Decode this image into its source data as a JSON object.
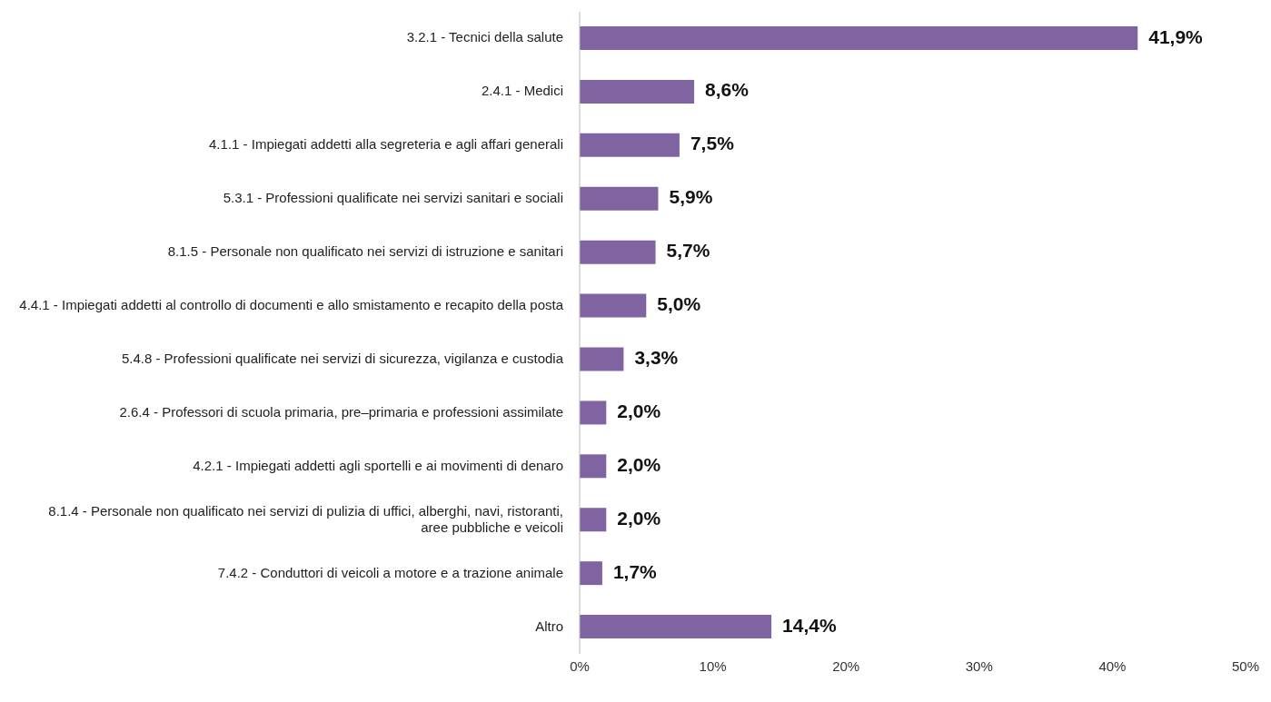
{
  "chart_data": {
    "type": "bar",
    "orientation": "horizontal",
    "categories": [
      "3.2.1 - Tecnici della salute",
      "2.4.1 - Medici",
      "4.1.1 - Impiegati addetti alla segreteria e agli affari generali",
      "5.3.1 - Professioni qualificate nei servizi sanitari e sociali",
      "8.1.5 - Personale non qualificato nei servizi di istruzione e sanitari",
      "4.4.1 - Impiegati addetti al controllo di documenti e allo smistamento e recapito della posta",
      "5.4.8 - Professioni qualificate nei servizi di sicurezza, vigilanza e custodia",
      "2.6.4 - Professori di scuola primaria, pre–primaria e professioni assimilate",
      "4.2.1 - Impiegati addetti agli sportelli e ai movimenti di denaro",
      "8.1.4 - Personale non qualificato nei servizi di pulizia di uffici, alberghi, navi, ristoranti, aree pubbliche e veicoli",
      "7.4.2 - Conduttori di veicoli a motore e a trazione animale",
      "Altro"
    ],
    "values": [
      41.9,
      8.6,
      7.5,
      5.9,
      5.7,
      5.0,
      3.3,
      2.0,
      2.0,
      2.0,
      1.7,
      14.4
    ],
    "value_labels": [
      "41,9%",
      "8,6%",
      "7,5%",
      "5,9%",
      "5,7%",
      "5,0%",
      "3,3%",
      "2,0%",
      "2,0%",
      "2,0%",
      "1,7%",
      "14,4%"
    ],
    "color": "#8064a2",
    "xlim": [
      0,
      50
    ],
    "xticks": [
      {
        "value": 0,
        "label": "0%"
      },
      {
        "value": 10,
        "label": "10%"
      },
      {
        "value": 20,
        "label": "20%"
      },
      {
        "value": 30,
        "label": "30%"
      },
      {
        "value": 40,
        "label": "40%"
      },
      {
        "value": 50,
        "label": "50%"
      }
    ],
    "grid": false,
    "legend": false
  }
}
